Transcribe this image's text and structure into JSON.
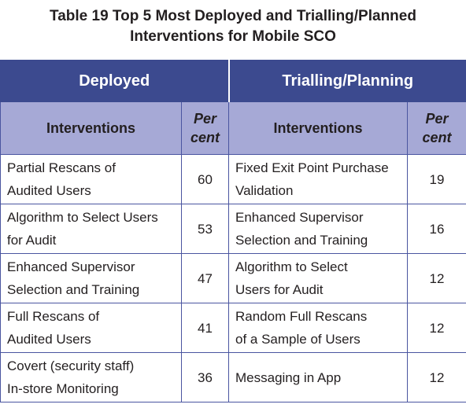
{
  "title": [
    "Table 19 Top 5 Most Deployed and Trialling/Planned",
    "Interventions for Mobile SCO"
  ],
  "table": {
    "groups": [
      "Deployed",
      "Trialling/Planning"
    ],
    "columns": [
      [
        "Interventions"
      ],
      [
        "Per",
        "cent"
      ],
      [
        "Interventions"
      ],
      [
        "Per",
        "cent"
      ]
    ],
    "rows": [
      [
        [
          "Partial Rescans of",
          "Audited Users"
        ],
        60,
        [
          "Fixed Exit Point Purchase",
          "Validation"
        ],
        19
      ],
      [
        [
          "Algorithm to Select Users",
          "for Audit"
        ],
        53,
        [
          "Enhanced Supervisor",
          "Selection and Training"
        ],
        16
      ],
      [
        [
          "Enhanced Supervisor",
          "Selection and Training"
        ],
        47,
        [
          "Algorithm to Select",
          "Users for Audit"
        ],
        12
      ],
      [
        [
          "Full Rescans of",
          "Audited Users"
        ],
        41,
        [
          "Random Full Rescans",
          "of a Sample of Users"
        ],
        12
      ],
      [
        [
          "Covert (security staff)",
          "In-store Monitoring"
        ],
        36,
        [
          "Messaging in App"
        ],
        12
      ]
    ]
  }
}
